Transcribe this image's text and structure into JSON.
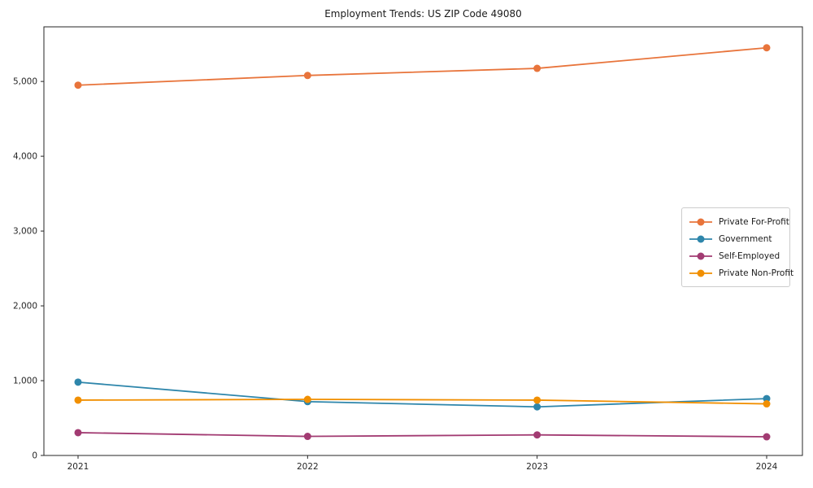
{
  "chart_data": {
    "type": "line",
    "title": "Employment Trends: US ZIP Code 49080",
    "xlabel": "",
    "ylabel": "",
    "categories": [
      "2021",
      "2022",
      "2023",
      "2024"
    ],
    "series": [
      {
        "name": "Private For-Profit",
        "color": "#E8743B",
        "values": [
          4950,
          5080,
          5175,
          5450
        ]
      },
      {
        "name": "Government",
        "color": "#2E86AB",
        "values": [
          980,
          720,
          650,
          760
        ]
      },
      {
        "name": "Self-Employed",
        "color": "#A23B72",
        "values": [
          305,
          255,
          275,
          250
        ]
      },
      {
        "name": "Private Non-Profit",
        "color": "#F18F01",
        "values": [
          740,
          750,
          740,
          690
        ]
      }
    ],
    "y_ticks": [
      0,
      1000,
      2000,
      3000,
      4000,
      5000
    ],
    "y_tick_labels": [
      "0",
      "1,000",
      "2,000",
      "3,000",
      "4,000",
      "5,000"
    ],
    "ylim": [
      0,
      5730
    ],
    "grid": false,
    "legend_position": "center-right",
    "axis_color": "#262626",
    "marker": "circle"
  }
}
